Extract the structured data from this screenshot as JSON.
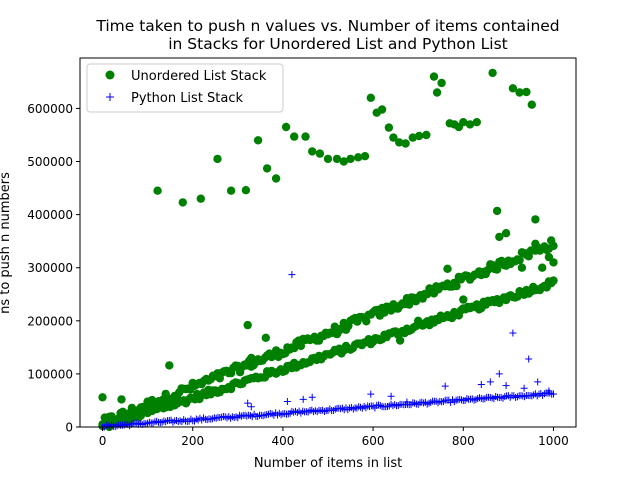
{
  "chart_data": {
    "type": "scatter",
    "title_line1": "Time taken to push n values vs. Number of items contained",
    "title_line2": "in Stacks for Unordered List and Python List",
    "xlabel": "Number of items in list",
    "ylabel": "ns to push n numbers",
    "xlim": [
      -50,
      1050
    ],
    "ylim": [
      0,
      695000
    ],
    "xticks": [
      0,
      200,
      400,
      600,
      800,
      1000
    ],
    "xtick_labels": [
      "0",
      "200",
      "400",
      "600",
      "800",
      "1000"
    ],
    "yticks": [
      0,
      100000,
      200000,
      300000,
      400000,
      500000,
      600000
    ],
    "ytick_labels": [
      "0",
      "100000",
      "200000",
      "300000",
      "400000",
      "500000",
      "600000"
    ],
    "legend_position": "upper-left",
    "grid": false,
    "series": [
      {
        "name": "Unordered List Stack",
        "marker": "circle",
        "color": "#008000",
        "generated": {
          "x_start": 0,
          "x_end": 1000,
          "x_step": 5,
          "lower_band_slope": 272,
          "lower_band_intercept": 0,
          "upper_band_slope": 338,
          "upper_band_intercept": 8000
        },
        "points": [
          [
            0,
            56000
          ],
          [
            42,
            52000
          ],
          [
            122,
            445000
          ],
          [
            148,
            116000
          ],
          [
            178,
            423000
          ],
          [
            218,
            430000
          ],
          [
            255,
            505000
          ],
          [
            285,
            445000
          ],
          [
            318,
            446000
          ],
          [
            345,
            540000
          ],
          [
            362,
            168000
          ],
          [
            365,
            487000
          ],
          [
            385,
            468000
          ],
          [
            407,
            565000
          ],
          [
            425,
            547000
          ],
          [
            450,
            547000
          ],
          [
            465,
            519000
          ],
          [
            482,
            515000
          ],
          [
            500,
            505000
          ],
          [
            520,
            505000
          ],
          [
            535,
            500000
          ],
          [
            550,
            505000
          ],
          [
            567,
            508000
          ],
          [
            582,
            510000
          ],
          [
            595,
            620000
          ],
          [
            608,
            592000
          ],
          [
            620,
            598000
          ],
          [
            635,
            564000
          ],
          [
            645,
            545000
          ],
          [
            658,
            536000
          ],
          [
            672,
            534000
          ],
          [
            688,
            545000
          ],
          [
            702,
            548000
          ],
          [
            718,
            550000
          ],
          [
            735,
            660000
          ],
          [
            742,
            630000
          ],
          [
            752,
            648000
          ],
          [
            770,
            572000
          ],
          [
            780,
            570000
          ],
          [
            790,
            565000
          ],
          [
            800,
            574000
          ],
          [
            815,
            570000
          ],
          [
            830,
            574000
          ],
          [
            865,
            667000
          ],
          [
            875,
            407000
          ],
          [
            910,
            638000
          ],
          [
            925,
            630000
          ],
          [
            940,
            631000
          ],
          [
            952,
            607000
          ],
          [
            960,
            391000
          ],
          [
            322,
            192000
          ],
          [
            330,
            130000
          ],
          [
            765,
            298000
          ],
          [
            680,
            240000
          ],
          [
            520,
            175000
          ],
          [
            880,
            358000
          ],
          [
            895,
            365000
          ],
          [
            940,
            327000
          ],
          [
            960,
            345000
          ],
          [
            980,
            340000
          ],
          [
            990,
            320000
          ],
          [
            1000,
            310000
          ],
          [
            700,
            200000
          ],
          [
            660,
            163000
          ],
          [
            850,
            293000
          ],
          [
            800,
            240000
          ],
          [
            930,
            300000
          ],
          [
            975,
            300000
          ]
        ]
      },
      {
        "name": "Python List Stack",
        "marker": "plus",
        "color": "#0000ff",
        "generated": {
          "x_start": 0,
          "x_end": 1000,
          "x_step": 4,
          "slope": 62,
          "intercept": 1000
        },
        "points": [
          [
            420,
            287000
          ],
          [
            322,
            45000
          ],
          [
            330,
            38000
          ],
          [
            410,
            48000
          ],
          [
            445,
            52000
          ],
          [
            465,
            56000
          ],
          [
            595,
            62000
          ],
          [
            640,
            58000
          ],
          [
            675,
            47000
          ],
          [
            760,
            77000
          ],
          [
            840,
            80000
          ],
          [
            860,
            85000
          ],
          [
            880,
            100000
          ],
          [
            895,
            78000
          ],
          [
            910,
            177000
          ],
          [
            935,
            73000
          ],
          [
            945,
            128000
          ],
          [
            965,
            85000
          ],
          [
            990,
            68000
          ]
        ]
      }
    ]
  }
}
